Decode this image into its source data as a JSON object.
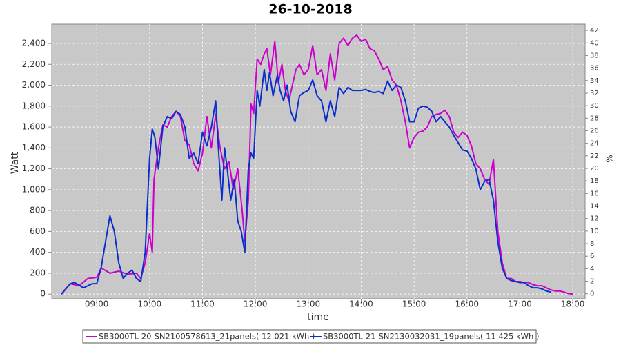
{
  "chart_data": {
    "type": "line",
    "title": "26-10-2018",
    "xlabel": "time",
    "ylabel": "Watt",
    "y2label": "%",
    "xlim": [
      "08:09",
      "18:14"
    ],
    "xticks": [
      "09:00",
      "10:00",
      "11:00",
      "12:00",
      "13:00",
      "14:00",
      "15:00",
      "16:00",
      "17:00",
      "18:00"
    ],
    "ylim": [
      -45,
      2585
    ],
    "yticks": [
      0,
      200,
      400,
      600,
      800,
      {
        "value": 1000,
        "label": "1,000"
      },
      {
        "value": 1200,
        "label": "1,200"
      },
      {
        "value": 1400,
        "label": "1,400"
      },
      {
        "value": 1600,
        "label": "1,600"
      },
      {
        "value": 1800,
        "label": "1,800"
      },
      {
        "value": 2000,
        "label": "2,000"
      },
      {
        "value": 2200,
        "label": "2,200"
      },
      {
        "value": 2400,
        "label": "2,400"
      }
    ],
    "y2lim": [
      -0.8,
      43
    ],
    "y2ticks": [
      0,
      2,
      4,
      6,
      8,
      10,
      12,
      14,
      16,
      18,
      20,
      22,
      24,
      26,
      28,
      30,
      32,
      34,
      36,
      38,
      40,
      42
    ],
    "grid": true,
    "series": [
      {
        "name": "SB3000TL-20-SN2100578613_21panels( 12.021 kWh )",
        "color": "#cc00cc",
        "x": [
          "08:20",
          "08:30",
          "08:40",
          "08:50",
          "09:00",
          "09:05",
          "09:15",
          "09:25",
          "09:35",
          "09:45",
          "09:50",
          "09:55",
          "10:00",
          "10:03",
          "10:05",
          "10:10",
          "10:15",
          "10:20",
          "10:25",
          "10:30",
          "10:35",
          "10:40",
          "10:45",
          "10:50",
          "10:55",
          "11:00",
          "11:05",
          "11:10",
          "11:15",
          "11:20",
          "11:25",
          "11:30",
          "11:35",
          "11:40",
          "11:45",
          "11:48",
          "11:52",
          "11:55",
          "11:58",
          "12:02",
          "12:06",
          "12:10",
          "12:13",
          "12:17",
          "12:22",
          "12:26",
          "12:30",
          "12:34",
          "12:38",
          "12:42",
          "12:46",
          "12:50",
          "12:55",
          "13:00",
          "13:05",
          "13:10",
          "13:15",
          "13:20",
          "13:25",
          "13:30",
          "13:35",
          "13:40",
          "13:45",
          "13:50",
          "13:55",
          "14:00",
          "14:05",
          "14:10",
          "14:15",
          "14:20",
          "14:25",
          "14:30",
          "14:35",
          "14:40",
          "14:45",
          "14:50",
          "14:55",
          "15:00",
          "15:05",
          "15:10",
          "15:15",
          "15:20",
          "15:25",
          "15:30",
          "15:35",
          "15:40",
          "15:45",
          "15:50",
          "15:55",
          "16:00",
          "16:05",
          "16:10",
          "16:15",
          "16:20",
          "16:25",
          "16:30",
          "16:35",
          "16:40",
          "16:45",
          "16:50",
          "16:55",
          "17:00",
          "17:05",
          "17:10",
          "17:15",
          "17:20",
          "17:25",
          "17:30",
          "17:35",
          "17:40",
          "17:45",
          "17:50",
          "17:55",
          "18:00"
        ],
        "values": [
          0,
          100,
          80,
          150,
          160,
          250,
          200,
          220,
          190,
          200,
          150,
          300,
          580,
          400,
          1100,
          1400,
          1620,
          1600,
          1700,
          1750,
          1700,
          1470,
          1430,
          1250,
          1180,
          1350,
          1700,
          1400,
          1720,
          1400,
          1200,
          1270,
          1000,
          1200,
          800,
          500,
          900,
          1820,
          1730,
          2250,
          2200,
          2300,
          2350,
          2100,
          2420,
          2020,
          2200,
          1950,
          1850,
          2000,
          2150,
          2200,
          2100,
          2150,
          2380,
          2100,
          2150,
          1950,
          2300,
          2050,
          2400,
          2450,
          2380,
          2450,
          2480,
          2420,
          2440,
          2350,
          2330,
          2250,
          2150,
          2180,
          2050,
          2000,
          1850,
          1650,
          1400,
          1500,
          1550,
          1560,
          1600,
          1700,
          1720,
          1730,
          1760,
          1700,
          1550,
          1500,
          1550,
          1520,
          1420,
          1250,
          1200,
          1100,
          1050,
          1290,
          600,
          300,
          150,
          150,
          120,
          120,
          110,
          110,
          90,
          80,
          80,
          60,
          40,
          30,
          30,
          20,
          5,
          0
        ]
      },
      {
        "name": "SB3000TL-21-SN2130032031_19panels( 11.425 kWh )",
        "color": "#0a2ecc",
        "x": [
          "08:20",
          "08:30",
          "08:35",
          "08:45",
          "08:55",
          "09:00",
          "09:05",
          "09:10",
          "09:15",
          "09:20",
          "09:25",
          "09:30",
          "09:35",
          "09:40",
          "09:45",
          "09:50",
          "09:55",
          "10:00",
          "10:03",
          "10:06",
          "10:10",
          "10:15",
          "10:20",
          "10:25",
          "10:30",
          "10:35",
          "10:40",
          "10:45",
          "10:50",
          "10:55",
          "11:00",
          "11:05",
          "11:10",
          "11:15",
          "11:18",
          "11:22",
          "11:25",
          "11:28",
          "11:32",
          "11:36",
          "11:40",
          "11:44",
          "11:48",
          "11:52",
          "11:55",
          "11:58",
          "12:02",
          "12:05",
          "12:10",
          "12:13",
          "12:16",
          "12:20",
          "12:25",
          "12:28",
          "12:32",
          "12:36",
          "12:40",
          "12:45",
          "12:50",
          "12:55",
          "13:00",
          "13:05",
          "13:10",
          "13:15",
          "13:20",
          "13:25",
          "13:30",
          "13:35",
          "13:40",
          "13:45",
          "13:50",
          "13:55",
          "14:00",
          "14:05",
          "14:10",
          "14:15",
          "14:20",
          "14:25",
          "14:30",
          "14:35",
          "14:40",
          "14:45",
          "14:50",
          "14:55",
          "15:00",
          "15:05",
          "15:10",
          "15:15",
          "15:20",
          "15:25",
          "15:30",
          "15:35",
          "15:40",
          "15:45",
          "15:50",
          "15:55",
          "16:00",
          "16:05",
          "16:10",
          "16:15",
          "16:20",
          "16:25",
          "16:30",
          "16:35",
          "16:40",
          "16:45",
          "16:50",
          "16:55",
          "17:00",
          "17:05",
          "17:10",
          "17:15",
          "17:20",
          "17:25",
          "17:30",
          "17:35"
        ],
        "values": [
          0,
          100,
          110,
          60,
          100,
          100,
          250,
          500,
          750,
          600,
          300,
          150,
          200,
          230,
          150,
          120,
          400,
          1300,
          1580,
          1500,
          1200,
          1600,
          1700,
          1680,
          1750,
          1720,
          1600,
          1300,
          1350,
          1250,
          1550,
          1420,
          1600,
          1850,
          1400,
          900,
          1400,
          1200,
          900,
          1100,
          700,
          600,
          400,
          1200,
          1350,
          1300,
          1950,
          1800,
          2150,
          1950,
          2120,
          1900,
          2100,
          1950,
          1850,
          2000,
          1750,
          1650,
          1900,
          1930,
          1950,
          2050,
          1900,
          1850,
          1650,
          1850,
          1700,
          1980,
          1920,
          1980,
          1950,
          1950,
          1950,
          1960,
          1940,
          1930,
          1940,
          1920,
          2040,
          1950,
          2000,
          1980,
          1850,
          1650,
          1650,
          1780,
          1800,
          1790,
          1750,
          1650,
          1700,
          1650,
          1600,
          1520,
          1450,
          1380,
          1370,
          1300,
          1200,
          1000,
          1080,
          1100,
          900,
          500,
          250,
          150,
          130,
          120,
          110,
          110,
          80,
          60,
          60,
          50,
          30,
          20
        ]
      }
    ]
  }
}
